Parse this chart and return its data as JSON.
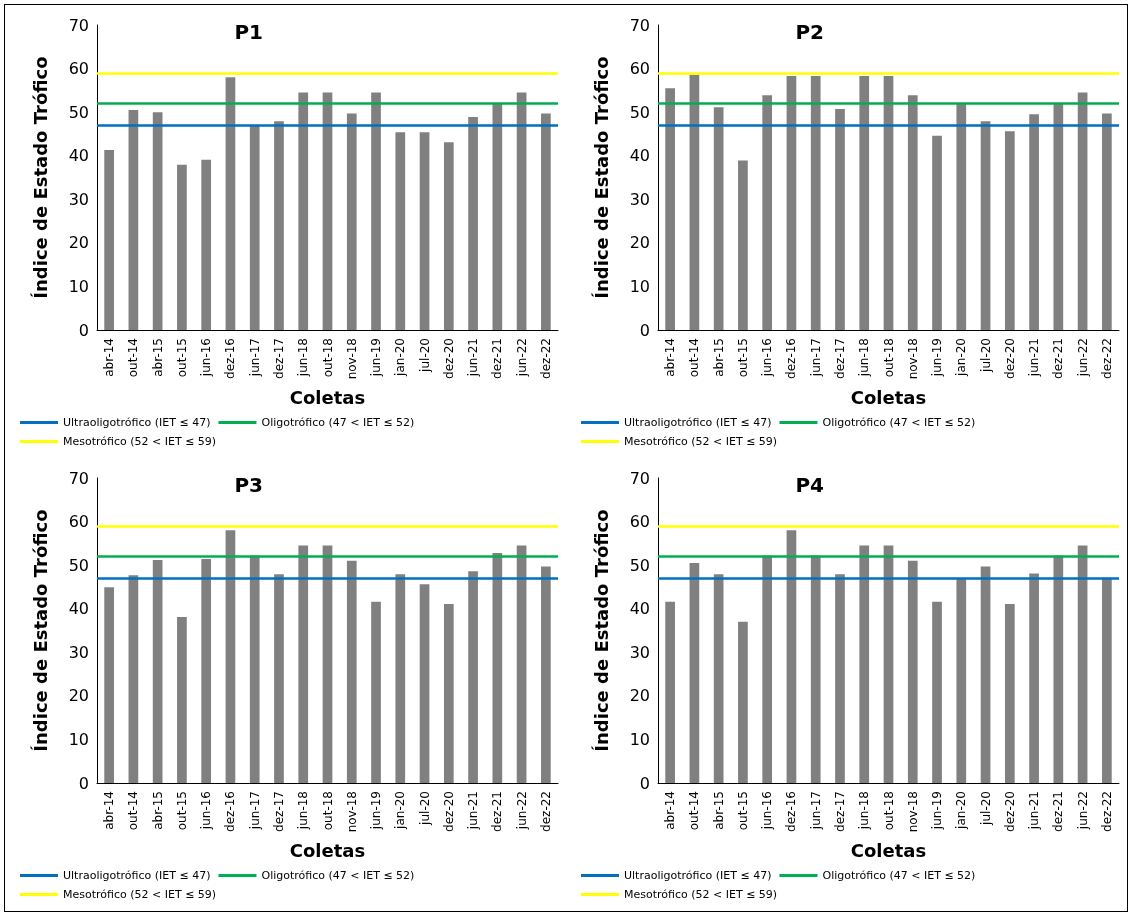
{
  "chart_data": [
    {
      "type": "bar",
      "title": "P1",
      "xlabel": "Coletas",
      "ylabel": "Índice de Estado Trófico",
      "categories": [
        "abr-14",
        "out-14",
        "abr-15",
        "out-15",
        "jun-16",
        "dez-16",
        "jun-17",
        "dez-17",
        "jun-18",
        "out-18",
        "nov-18",
        "jun-19",
        "jan-20",
        "jul-20",
        "dez-20",
        "jun-21",
        "dez-21",
        "jun-22",
        "dez-22"
      ],
      "values": [
        41.3,
        50.5,
        50.0,
        37.9,
        39.1,
        58.0,
        46.8,
        47.9,
        54.5,
        54.5,
        49.7,
        54.5,
        45.4,
        45.4,
        43.1,
        48.9,
        52.0,
        54.5,
        49.7
      ],
      "color": "#808080",
      "ylim": [
        0,
        70
      ],
      "yticks": [
        0,
        10,
        20,
        30,
        40,
        50,
        60,
        70
      ],
      "grid": false,
      "legend": "bottom",
      "ref_lines": [
        {
          "axis": "y",
          "value": 47,
          "label": "Ultraoligotrófico (IET ≤ 47)",
          "color": "#0070c0"
        },
        {
          "axis": "y",
          "value": 52,
          "label": "Oligotrófico (47 < IET ≤ 52)",
          "color": "#00b050"
        },
        {
          "axis": "y",
          "value": 59,
          "label": "Mesotrófico (52 < IET ≤ 59)",
          "color": "#ffff00"
        }
      ]
    },
    {
      "type": "bar",
      "title": "P2",
      "xlabel": "Coletas",
      "ylabel": "Índice de Estado Trófico",
      "categories": [
        "abr-14",
        "out-14",
        "abr-15",
        "out-15",
        "jun-16",
        "dez-16",
        "jun-17",
        "dez-17",
        "jun-18",
        "out-18",
        "nov-18",
        "jun-19",
        "jan-20",
        "jul-20",
        "dez-20",
        "jun-21",
        "dez-21",
        "jun-22",
        "dez-22"
      ],
      "values": [
        55.5,
        58.6,
        51.1,
        38.9,
        53.9,
        58.3,
        58.3,
        50.7,
        58.3,
        58.3,
        53.9,
        44.6,
        52.0,
        47.9,
        45.6,
        49.5,
        52.0,
        54.5,
        49.7
      ],
      "color": "#808080",
      "ylim": [
        0,
        70
      ],
      "yticks": [
        0,
        10,
        20,
        30,
        40,
        50,
        60,
        70
      ],
      "grid": false,
      "legend": "bottom",
      "ref_lines": [
        {
          "axis": "y",
          "value": 47,
          "label": "Ultraoligotrófico (IET ≤ 47)",
          "color": "#0070c0"
        },
        {
          "axis": "y",
          "value": 52,
          "label": "Oligotrófico (47 < IET ≤ 52)",
          "color": "#00b050"
        },
        {
          "axis": "y",
          "value": 59,
          "label": "Mesotrófico (52 < IET ≤ 59)",
          "color": "#ffff00"
        }
      ]
    },
    {
      "type": "bar",
      "title": "P3",
      "xlabel": "Coletas",
      "ylabel": "Índice de Estado Trófico",
      "categories": [
        "abr-14",
        "out-14",
        "abr-15",
        "out-15",
        "jun-16",
        "dez-16",
        "jun-17",
        "dez-17",
        "jun-18",
        "out-18",
        "nov-18",
        "jun-19",
        "jan-20",
        "jul-20",
        "dez-20",
        "jun-21",
        "dez-21",
        "jun-22",
        "dez-22"
      ],
      "values": [
        44.9,
        47.7,
        51.2,
        38.1,
        51.4,
        58.0,
        52.2,
        47.9,
        54.5,
        54.5,
        51.0,
        41.6,
        47.9,
        45.6,
        41.1,
        48.6,
        52.8,
        54.5,
        49.7
      ],
      "color": "#808080",
      "ylim": [
        0,
        70
      ],
      "yticks": [
        0,
        10,
        20,
        30,
        40,
        50,
        60,
        70
      ],
      "grid": false,
      "legend": "bottom",
      "ref_lines": [
        {
          "axis": "y",
          "value": 47,
          "label": "Ultraoligotrófico (IET ≤ 47)",
          "color": "#0070c0"
        },
        {
          "axis": "y",
          "value": 52,
          "label": "Oligotrófico (47 < IET ≤ 52)",
          "color": "#00b050"
        },
        {
          "axis": "y",
          "value": 59,
          "label": "Mesotrófico (52 < IET ≤ 59)",
          "color": "#ffff00"
        }
      ]
    },
    {
      "type": "bar",
      "title": "P4",
      "xlabel": "Coletas",
      "ylabel": "Índice de Estado Trófico",
      "categories": [
        "abr-14",
        "out-14",
        "abr-15",
        "out-15",
        "jun-16",
        "dez-16",
        "jun-17",
        "dez-17",
        "jun-18",
        "out-18",
        "nov-18",
        "jun-19",
        "jan-20",
        "jul-20",
        "dez-20",
        "jun-21",
        "dez-21",
        "jun-22",
        "dez-22"
      ],
      "values": [
        41.6,
        50.5,
        47.9,
        37.0,
        52.2,
        58.0,
        52.2,
        47.9,
        54.5,
        54.5,
        51.0,
        41.6,
        46.9,
        49.7,
        41.1,
        48.1,
        52.2,
        54.5,
        47.1
      ],
      "color": "#808080",
      "ylim": [
        0,
        70
      ],
      "yticks": [
        0,
        10,
        20,
        30,
        40,
        50,
        60,
        70
      ],
      "grid": false,
      "legend": "bottom",
      "ref_lines": [
        {
          "axis": "y",
          "value": 47,
          "label": "Ultraoligotrófico (IET ≤ 47)",
          "color": "#0070c0"
        },
        {
          "axis": "y",
          "value": 52,
          "label": "Oligotrófico (47 < IET ≤ 52)",
          "color": "#00b050"
        },
        {
          "axis": "y",
          "value": 59,
          "label": "Mesotrófico (52 < IET ≤ 59)",
          "color": "#ffff00"
        }
      ]
    }
  ]
}
